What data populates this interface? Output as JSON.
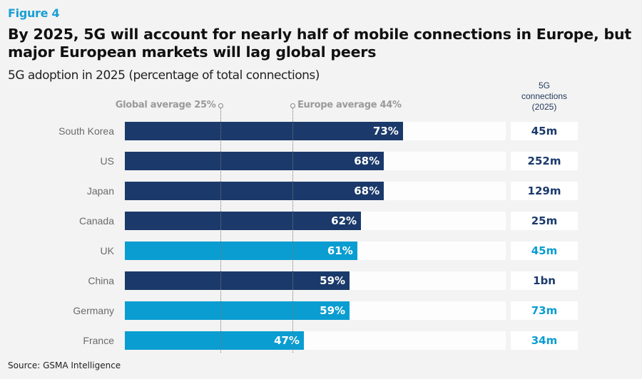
{
  "figure_label": "Figure 4",
  "chart_data": {
    "type": "bar",
    "orientation": "horizontal",
    "title": "By 2025, 5G will account for nearly half of mobile connections in Europe, but major European markets will lag global peers",
    "subtitle": "5G adoption in 2025 (percentage of total connections)",
    "xlabel": "",
    "ylabel": "",
    "xlim": [
      0,
      100
    ],
    "grid": false,
    "categories": [
      "South Korea",
      "US",
      "Japan",
      "Canada",
      "UK",
      "China",
      "Germany",
      "France"
    ],
    "values": [
      73,
      68,
      68,
      62,
      61,
      59,
      59,
      47
    ],
    "value_labels": [
      "73%",
      "68%",
      "68%",
      "62%",
      "61%",
      "59%",
      "59%",
      "47%"
    ],
    "group": [
      "other",
      "other",
      "other",
      "other",
      "europe",
      "other",
      "europe",
      "europe"
    ],
    "reference_lines": [
      {
        "label": "Global average 25%",
        "value": 25
      },
      {
        "label": "Europe average 44%",
        "value": 44
      }
    ],
    "side_column": {
      "header": [
        "5G",
        "connections",
        "(2025)"
      ],
      "values": [
        "45m",
        "252m",
        "129m",
        "25m",
        "45m",
        "1bn",
        "73m",
        "34m"
      ]
    },
    "colors": {
      "other": "#1b3a6b",
      "europe": "#0a9dd1",
      "track": "#fdfdfd",
      "reference": "#9a9a9a"
    }
  },
  "source": "Source: GSMA Intelligence"
}
